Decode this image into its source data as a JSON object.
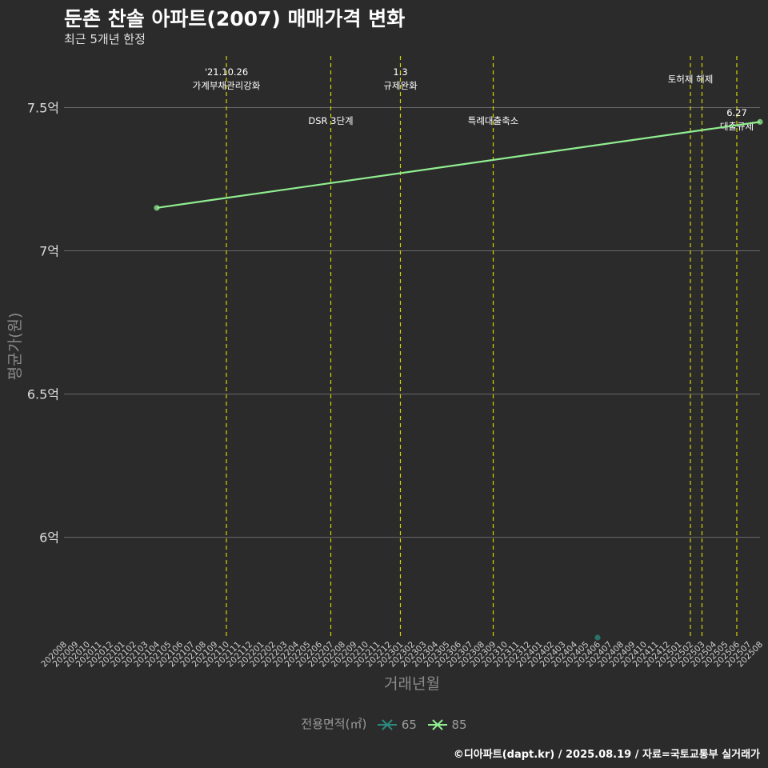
{
  "header": {
    "title": "둔촌 찬솔 아파트(2007) 매매가격 변화",
    "subtitle": "최근 5개년 한정"
  },
  "caption": "©디아파트(dapt.kr) / 2025.08.19 / 자료=국토교통부 실거래가",
  "colors": {
    "background": "#2b2b2b",
    "grid": "#6a6a6a",
    "event_line": "#d4d400",
    "series_65": "#2a8a80",
    "series_85": "#90ee90"
  },
  "chart_data": {
    "type": "line",
    "xlabel": "거래년월",
    "ylabel": "평균가(원)",
    "x_categories": [
      "202008",
      "202009",
      "202010",
      "202011",
      "202012",
      "202101",
      "202102",
      "202103",
      "202104",
      "202105",
      "202106",
      "202107",
      "202108",
      "202109",
      "202110",
      "202111",
      "202112",
      "202201",
      "202202",
      "202203",
      "202204",
      "202205",
      "202206",
      "202207",
      "202208",
      "202209",
      "202210",
      "202211",
      "202212",
      "202301",
      "202302",
      "202303",
      "202304",
      "202305",
      "202306",
      "202307",
      "202308",
      "202309",
      "202310",
      "202311",
      "202312",
      "202401",
      "202402",
      "202403",
      "202404",
      "202405",
      "202406",
      "202407",
      "202408",
      "202409",
      "202410",
      "202411",
      "202412",
      "202501",
      "202502",
      "202503",
      "202504",
      "202505",
      "202506",
      "202507",
      "202508"
    ],
    "y_ticks": [
      {
        "value": 600000000,
        "label": "6억"
      },
      {
        "value": 650000000,
        "label": "6.5억"
      },
      {
        "value": 700000000,
        "label": "7억"
      },
      {
        "value": 750000000,
        "label": "7.5억"
      }
    ],
    "ylim": [
      565000000,
      768000000
    ],
    "grid": "horizontal",
    "legend": {
      "title": "전용면적(㎡)",
      "position": "bottom",
      "entries": [
        {
          "label": "65",
          "color": "#2a8a80"
        },
        {
          "label": "85",
          "color": "#90ee90"
        }
      ]
    },
    "series": [
      {
        "name": "65",
        "color": "#2a8a80",
        "points": [
          {
            "x": "202406",
            "y": 565000000
          }
        ],
        "trend": []
      },
      {
        "name": "85",
        "color": "#90ee90",
        "points": [
          {
            "x": "202104",
            "y": 715000000
          },
          {
            "x": "202508",
            "y": 745000000
          }
        ],
        "trend": [
          {
            "x": "202104",
            "y": 715000000
          },
          {
            "x": "202508",
            "y": 745000000
          }
        ]
      }
    ],
    "events": [
      {
        "x": "202110",
        "lines": [
          "'21.10.26",
          "가계부채관리강화"
        ],
        "row": "top"
      },
      {
        "x": "202207",
        "lines": [
          "DSR 3단계"
        ],
        "row": "bottom"
      },
      {
        "x": "202301",
        "lines": [
          "1.3",
          "규제완화"
        ],
        "row": "top"
      },
      {
        "x": "202309",
        "lines": [
          "특례대출축소"
        ],
        "row": "bottom"
      },
      {
        "x": "202502",
        "lines": [
          "토허제 해제"
        ],
        "row": "top"
      },
      {
        "x": "202503",
        "lines": [],
        "row": "top"
      },
      {
        "x": "202506",
        "lines": [
          "6.27",
          "대출규제"
        ],
        "row": "bottom"
      }
    ]
  }
}
